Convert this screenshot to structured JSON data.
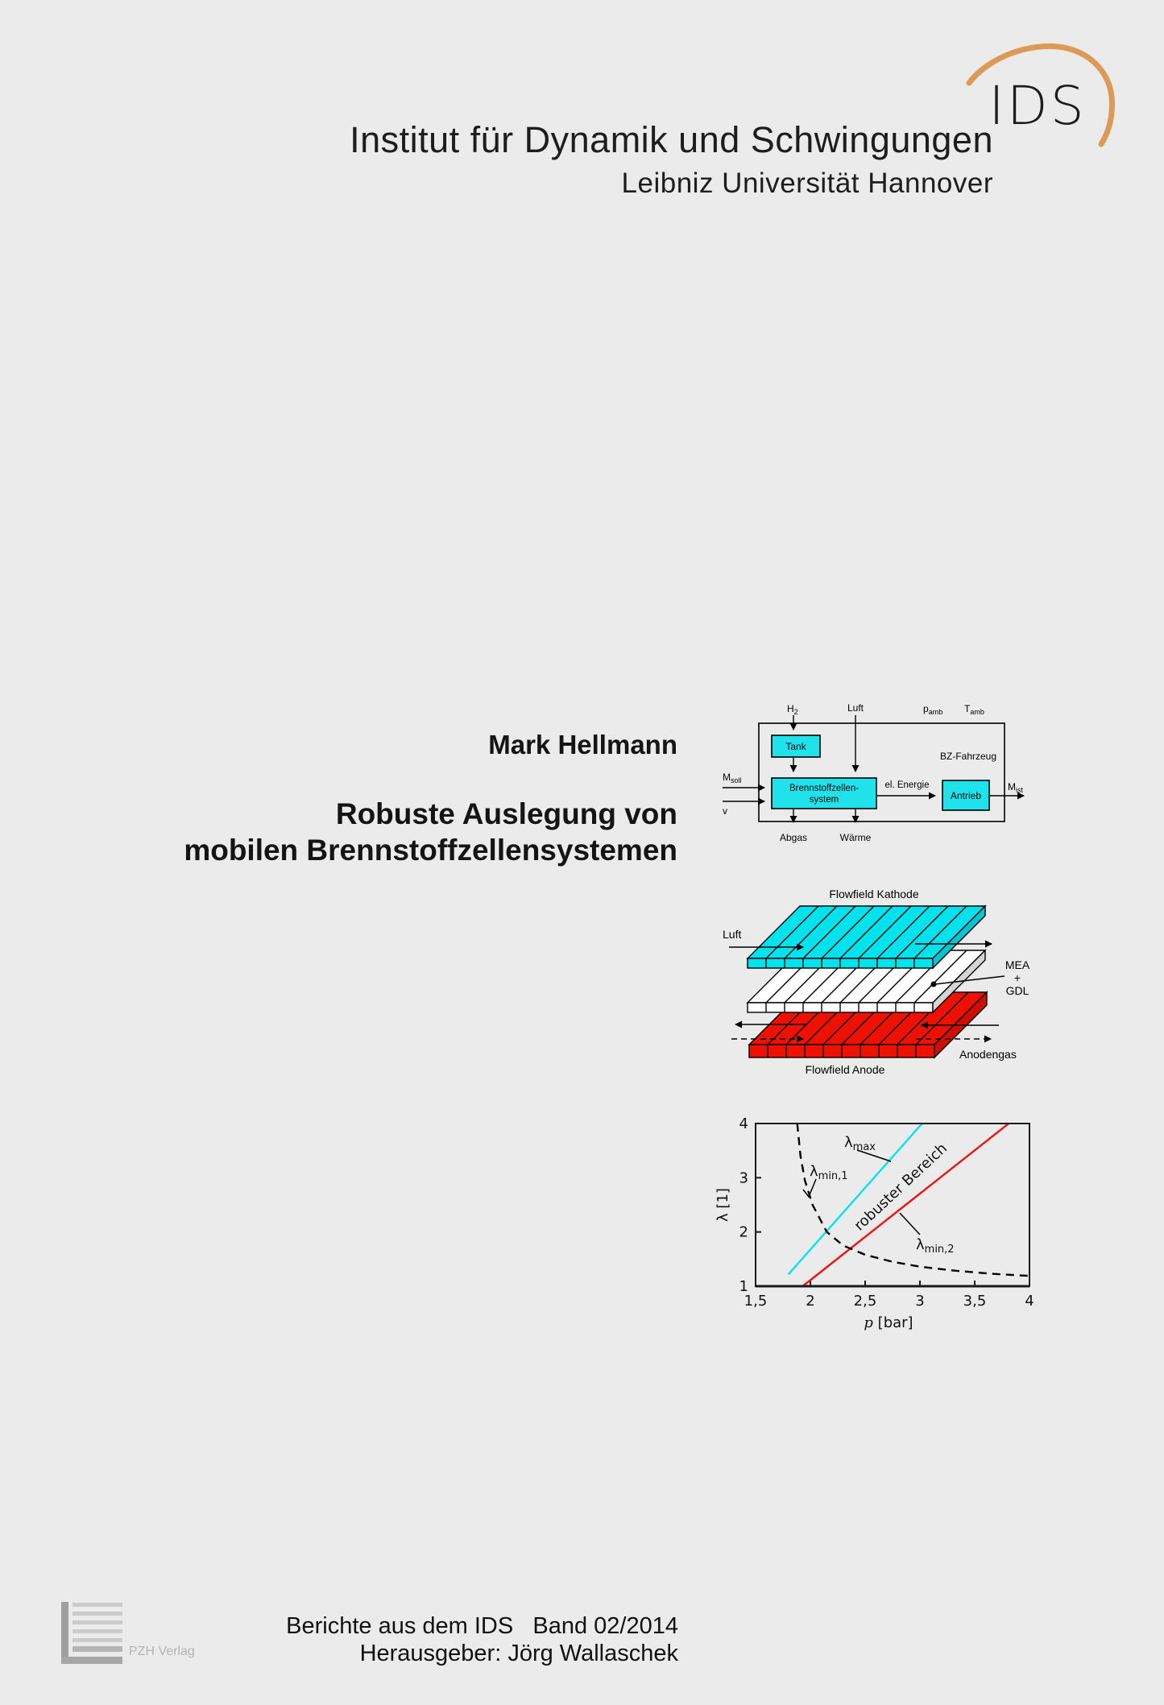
{
  "page": {
    "background": "#ebebeb"
  },
  "header": {
    "logo": {
      "text": "IDS",
      "arc_color": "#dc9a55"
    },
    "institute": "Institut für Dynamik und Schwingungen",
    "university": "Leibniz Universität Hannover"
  },
  "title_block": {
    "author": "Mark Hellmann",
    "title_line1": "Robuste Auslegung von",
    "title_line2": "mobilen Brennstoffzellensystemen"
  },
  "system_diagram": {
    "h2": {
      "main": "H",
      "sub": "2"
    },
    "luft": "Luft",
    "p_amb": {
      "main": "p",
      "sub": "amb"
    },
    "t_amb": {
      "main": "T",
      "sub": "amb"
    },
    "vehicle": "BZ-Fahrzeug",
    "tank": "Tank",
    "fuel_cell_line1": "Brennstoffzellen-",
    "fuel_cell_line2": "system",
    "drive": "Antrieb",
    "energy": "el. Energie",
    "m_soll": {
      "main": "M",
      "sub": "soll"
    },
    "v": "v",
    "m_ist": {
      "main": "M",
      "sub": "ist"
    },
    "abgas": "Abgas",
    "waerme": "Wärme",
    "box_fill": "#1fe2ea"
  },
  "flowfield_diagram": {
    "kathode_label": "Flowfield Kathode",
    "anode_label": "Flowfield Anode",
    "luft_label": "Luft",
    "mea_label": {
      "line1": "MEA",
      "line2": "+",
      "line3": "GDL"
    },
    "anodengas_label": "Anodengas",
    "cathode_color": "#00e2ec",
    "anode_color": "#ee1100"
  },
  "chart_data": {
    "type": "line",
    "xlabel_symbol": "p",
    "xlabel_unit": " [bar]",
    "ylabel": "λ [1]",
    "xlim": [
      1.5,
      4
    ],
    "ylim": [
      1,
      4
    ],
    "grid": false,
    "legend": "none",
    "xticks": {
      "labels": [
        "1,5",
        "2",
        "2,5",
        "3",
        "3,5",
        "4"
      ],
      "values": [
        1.5,
        2,
        2.5,
        3,
        3.5,
        4
      ]
    },
    "yticks": {
      "labels": [
        "1",
        "2",
        "3",
        "4"
      ],
      "values": [
        1,
        2,
        3,
        4
      ]
    },
    "series": [
      {
        "name": "λmax",
        "color": "#00e5ee",
        "style": "solid",
        "points": [
          [
            1.8,
            1.22
          ],
          [
            3.02,
            4.0
          ]
        ]
      },
      {
        "name": "λmin,2",
        "color": "#ee1111",
        "style": "solid",
        "points": [
          [
            1.93,
            1.0
          ],
          [
            3.81,
            4.0
          ]
        ]
      },
      {
        "name": "λmin,1",
        "color": "#000000",
        "style": "dashed",
        "points": [
          [
            1.88,
            4.0
          ],
          [
            1.91,
            3.4
          ],
          [
            1.95,
            2.95
          ],
          [
            2.02,
            2.5
          ],
          [
            2.15,
            2.0
          ],
          [
            2.3,
            1.75
          ],
          [
            2.5,
            1.58
          ],
          [
            2.75,
            1.45
          ],
          [
            3.0,
            1.36
          ],
          [
            3.3,
            1.29
          ],
          [
            3.65,
            1.23
          ],
          [
            4.0,
            1.19
          ]
        ]
      }
    ],
    "labels": {
      "lambda": "λ",
      "max_sub": "max",
      "min1_sub": "min,1",
      "min2_sub": "min,2",
      "region": "robuster Bereich"
    }
  },
  "footer": {
    "publisher": "PZH Verlag",
    "series_line": "Berichte aus dem IDS   Band 02/2014",
    "editor_line": "Herausgeber: Jörg Wallaschek"
  }
}
